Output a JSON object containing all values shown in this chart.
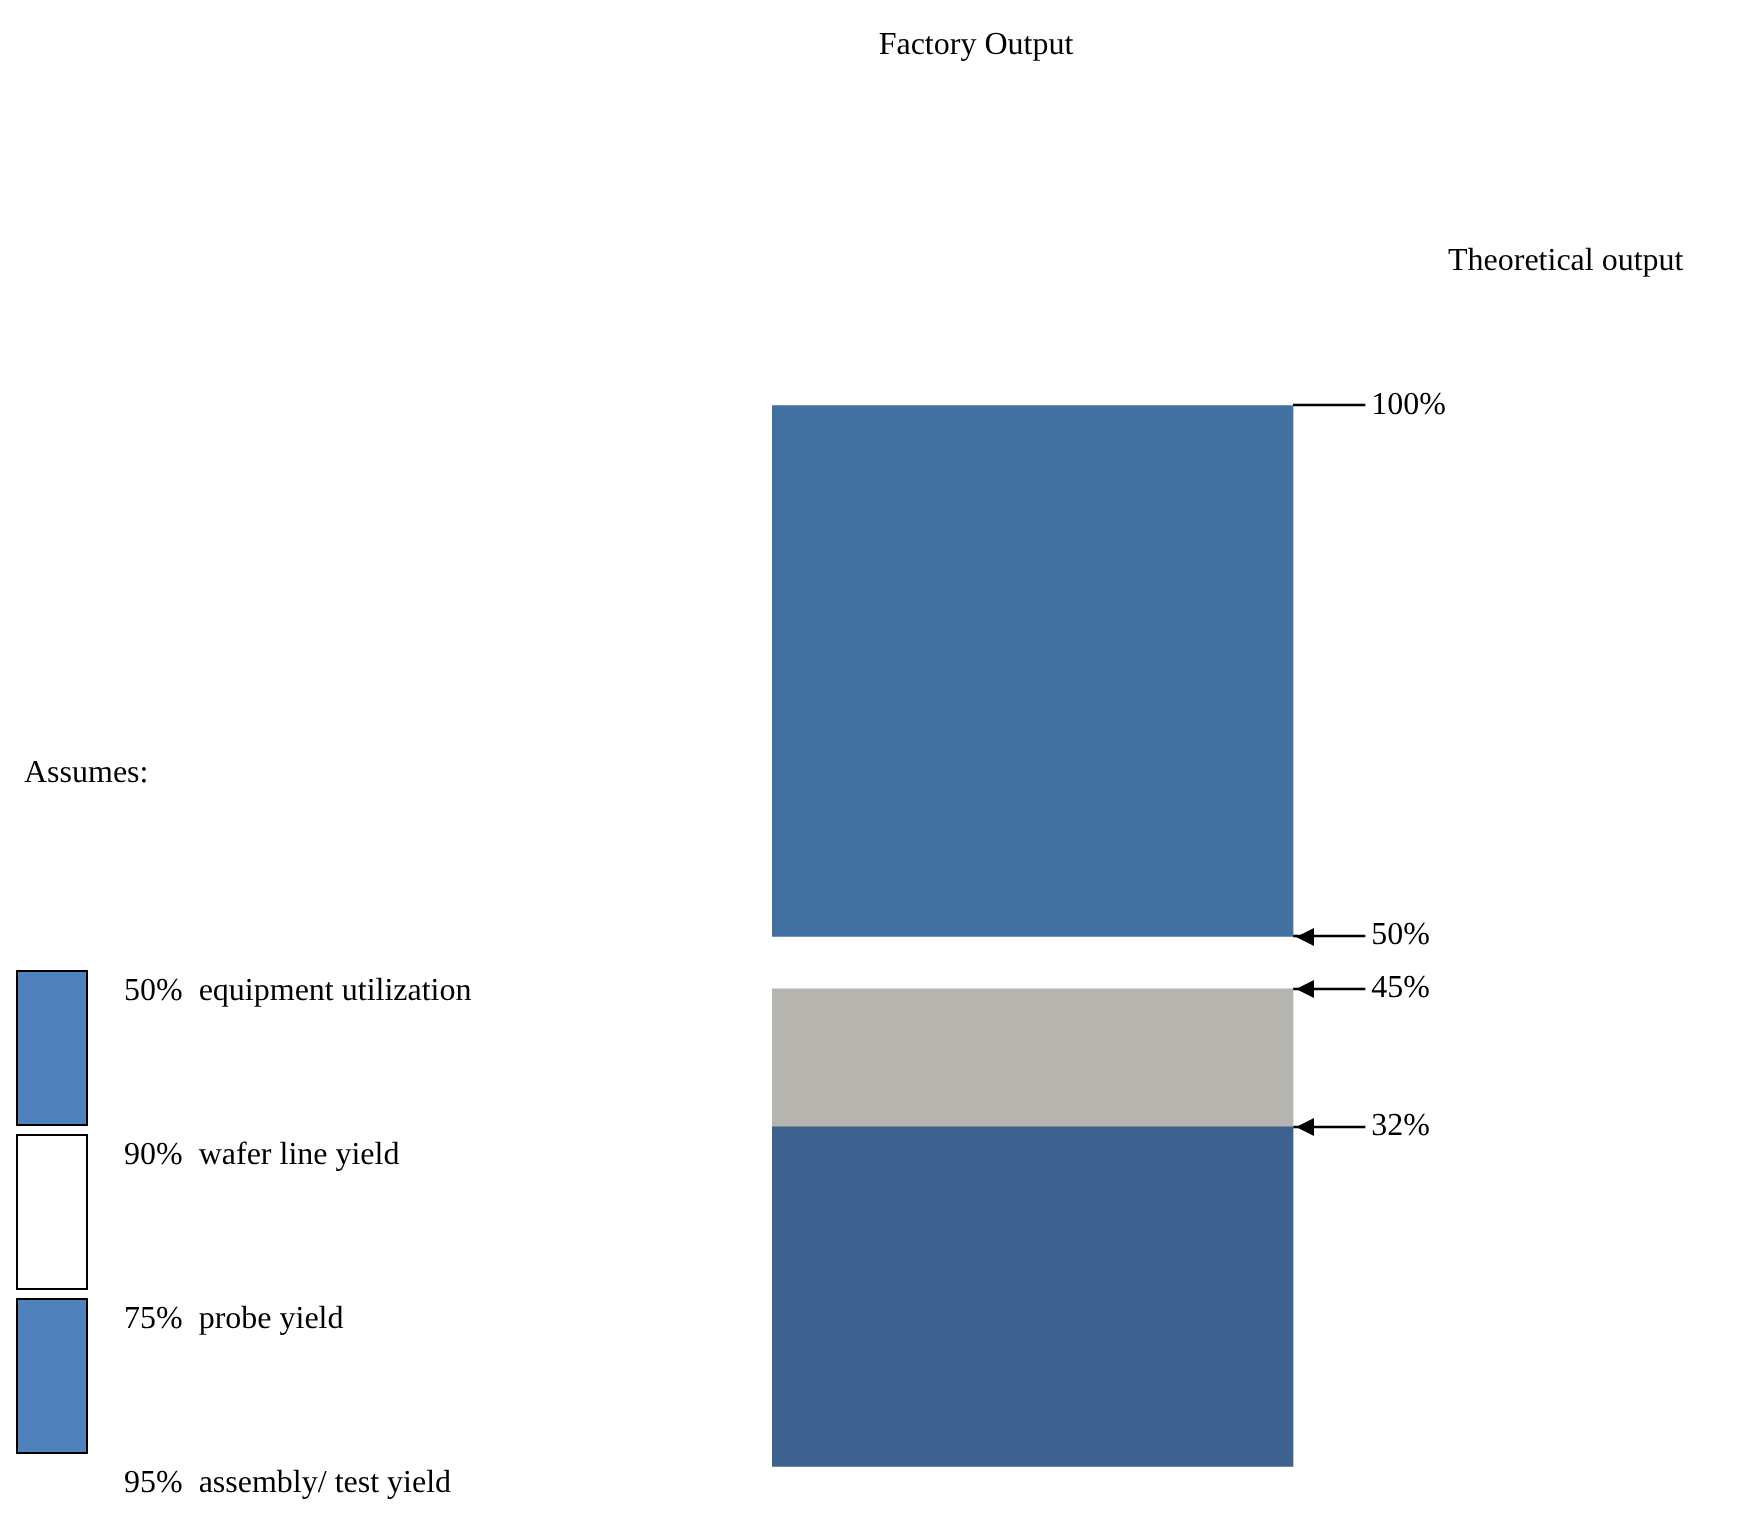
{
  "chart_data": {
    "type": "bar",
    "title": "Factory Output",
    "categories": [
      null
    ],
    "series": [
      {
        "color": "#3d6290",
        "values": [
          32
        ],
        "base": [
          0
        ]
      },
      {
        "color": "#b6b4ae",
        "values": [
          13
        ],
        "base": [
          32
        ]
      },
      {
        "color": "#4170a1",
        "values": [
          50
        ],
        "base": [
          50
        ]
      }
    ],
    "ylim": [
      0,
      100
    ],
    "yticks": [
      {
        "value": 100,
        "label": "100%"
      },
      {
        "value": 50,
        "label": "50%"
      },
      {
        "value": 45,
        "label": "45%"
      },
      {
        "value": 32,
        "label": "32%"
      }
    ],
    "annotations": [
      "Theoretical output",
      "Assumes:",
      "50%  equipment utilization",
      "90%  wafer line yield",
      "75%  probe yield",
      "95%  assembly/ test yield"
    ],
    "legend": false
  }
}
